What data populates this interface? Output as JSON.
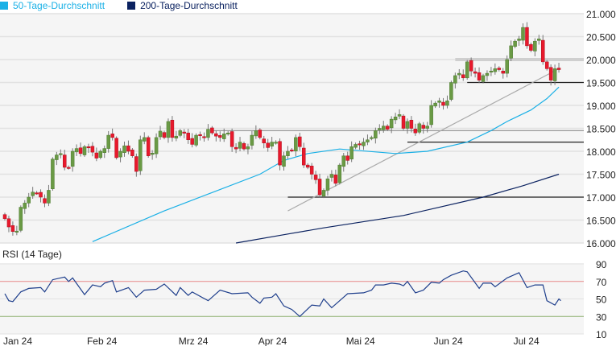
{
  "legend": {
    "ma50": {
      "label": "50-Tage-Durchschnitt",
      "color": "#1ab0e6"
    },
    "ma200": {
      "label": "200-Tage-Durchschnitt",
      "color": "#0b2260"
    }
  },
  "rsi_title": "RSI (14 Tage)",
  "chart_data": [
    {
      "type": "candlestick",
      "title": "",
      "ylim": [
        16000,
        21000
      ],
      "y_ticks": [
        "21.000",
        "20.500",
        "20.000",
        "19.500",
        "19.000",
        "18.500",
        "18.000",
        "17.500",
        "17.000",
        "16.500",
        "16.000"
      ],
      "y_tick_values": [
        21000,
        20500,
        20000,
        19500,
        19000,
        18500,
        18000,
        17500,
        17000,
        16500,
        16000
      ],
      "x_ticks": [
        {
          "label": "Jan 24",
          "day": 0
        },
        {
          "label": "Feb 24",
          "day": 21
        },
        {
          "label": "Mrz 24",
          "day": 44
        },
        {
          "label": "Apr 24",
          "day": 64
        },
        {
          "label": "Mai 24",
          "day": 86
        },
        {
          "label": "Jun 24",
          "day": 108
        },
        {
          "label": "Jul 24",
          "day": 128
        }
      ],
      "up_color": "#6a9a45",
      "down_color": "#e8192c",
      "closes": [
        16530,
        16350,
        16250,
        16260,
        16780,
        16870,
        17000,
        17110,
        17090,
        17000,
        16870,
        17150,
        17830,
        17920,
        17950,
        17650,
        17640,
        18000,
        18060,
        17950,
        18100,
        18080,
        17980,
        17850,
        18000,
        18060,
        18350,
        18300,
        17860,
        18000,
        18120,
        18000,
        17900,
        17560,
        18250,
        18300,
        17900,
        17960,
        18300,
        18440,
        18300,
        18650,
        18300,
        18330,
        18450,
        18400,
        18250,
        18150,
        18350,
        18350,
        18300,
        18480,
        18400,
        18330,
        18300,
        18380,
        18400,
        18100,
        18050,
        18200,
        18050,
        18100,
        18350,
        18450,
        18300,
        18180,
        18080,
        18200,
        18200,
        17700,
        17900,
        18000,
        18020,
        18300,
        18100,
        17700,
        17650,
        17500,
        17380,
        17050,
        17150,
        17400,
        17500,
        17300,
        17700,
        17900,
        17800,
        18100,
        18150,
        18150,
        18200,
        18250,
        18300,
        18450,
        18500,
        18550,
        18480,
        18700,
        18750,
        18800,
        18500,
        18650,
        18500,
        18400,
        18600,
        18500,
        18550,
        19000,
        19050,
        19100,
        19000,
        19100,
        19500,
        19650,
        19700,
        19600,
        19950,
        19750,
        19700,
        19550,
        19650,
        19700,
        19750,
        19800,
        19780,
        19700,
        20000,
        20300,
        20400,
        20450,
        20700,
        20300,
        20200,
        20400,
        20450,
        19950,
        19800,
        19550,
        19800,
        19780
      ],
      "ma50": [
        [
          22,
          16030
        ],
        [
          40,
          16700
        ],
        [
          52,
          17100
        ],
        [
          64,
          17500
        ],
        [
          70,
          17800
        ],
        [
          76,
          17950
        ],
        [
          84,
          18050
        ],
        [
          98,
          17950
        ],
        [
          106,
          18000
        ],
        [
          116,
          18200
        ],
        [
          122,
          18450
        ],
        [
          126,
          18650
        ],
        [
          132,
          18900
        ],
        [
          136,
          19150
        ],
        [
          139,
          19400
        ]
      ],
      "ma200": [
        [
          58,
          16000
        ],
        [
          70,
          16180
        ],
        [
          80,
          16330
        ],
        [
          100,
          16600
        ],
        [
          120,
          17000
        ],
        [
          130,
          17250
        ],
        [
          139,
          17500
        ]
      ],
      "trendline": {
        "from": [
          71,
          16700
        ],
        "to": [
          139,
          19800
        ]
      },
      "support_resistance": [
        {
          "value": 18450,
          "from_day": 52
        },
        {
          "value": 18200,
          "from_day": 101
        },
        {
          "value": 19500,
          "from_day": 116
        },
        {
          "value": 17000,
          "from_day": 71
        },
        {
          "value": 20000,
          "from_day": 113,
          "zone": true
        }
      ]
    },
    {
      "type": "line",
      "title": "RSI (14 Tage)",
      "ylim": [
        10,
        90
      ],
      "y_ticks": [
        "90",
        "70",
        "50",
        "30",
        "10"
      ],
      "y_tick_values": [
        90,
        70,
        50,
        30,
        10
      ],
      "overbought": 70,
      "oversold": 30,
      "line_color": "#1f3f8c",
      "points": [
        [
          0,
          56
        ],
        [
          1,
          48
        ],
        [
          2,
          47
        ],
        [
          4,
          58
        ],
        [
          6,
          62
        ],
        [
          9,
          63
        ],
        [
          10,
          58
        ],
        [
          12,
          72
        ],
        [
          15,
          75
        ],
        [
          16,
          70
        ],
        [
          17,
          74
        ],
        [
          20,
          55
        ],
        [
          22,
          66
        ],
        [
          24,
          64
        ],
        [
          25,
          68
        ],
        [
          27,
          71
        ],
        [
          28,
          58
        ],
        [
          31,
          63
        ],
        [
          33,
          52
        ],
        [
          35,
          60
        ],
        [
          38,
          61
        ],
        [
          40,
          67
        ],
        [
          43,
          54
        ],
        [
          44,
          63
        ],
        [
          46,
          54
        ],
        [
          47,
          58
        ],
        [
          51,
          48
        ],
        [
          54,
          60
        ],
        [
          57,
          56
        ],
        [
          61,
          57
        ],
        [
          62,
          52
        ],
        [
          64,
          45
        ],
        [
          65,
          51
        ],
        [
          67,
          52
        ],
        [
          68,
          56
        ],
        [
          70,
          42
        ],
        [
          72,
          38
        ],
        [
          74,
          30
        ],
        [
          77,
          43
        ],
        [
          79,
          42
        ],
        [
          80,
          50
        ],
        [
          82,
          40
        ],
        [
          85,
          52
        ],
        [
          86,
          56
        ],
        [
          90,
          57
        ],
        [
          92,
          60
        ],
        [
          93,
          66
        ],
        [
          95,
          66
        ],
        [
          97,
          68
        ],
        [
          99,
          67
        ],
        [
          100,
          65
        ],
        [
          101,
          70
        ],
        [
          103,
          57
        ],
        [
          105,
          60
        ],
        [
          107,
          69
        ],
        [
          109,
          68
        ],
        [
          110,
          72
        ],
        [
          112,
          77
        ],
        [
          115,
          82
        ],
        [
          116,
          81
        ],
        [
          119,
          62
        ],
        [
          120,
          68
        ],
        [
          122,
          68
        ],
        [
          123,
          64
        ],
        [
          126,
          74
        ],
        [
          128,
          78
        ],
        [
          129,
          80
        ],
        [
          131,
          63
        ],
        [
          133,
          66
        ],
        [
          135,
          66
        ],
        [
          136,
          48
        ],
        [
          138,
          43
        ],
        [
          139,
          50
        ],
        [
          139.5,
          48
        ]
      ]
    }
  ]
}
